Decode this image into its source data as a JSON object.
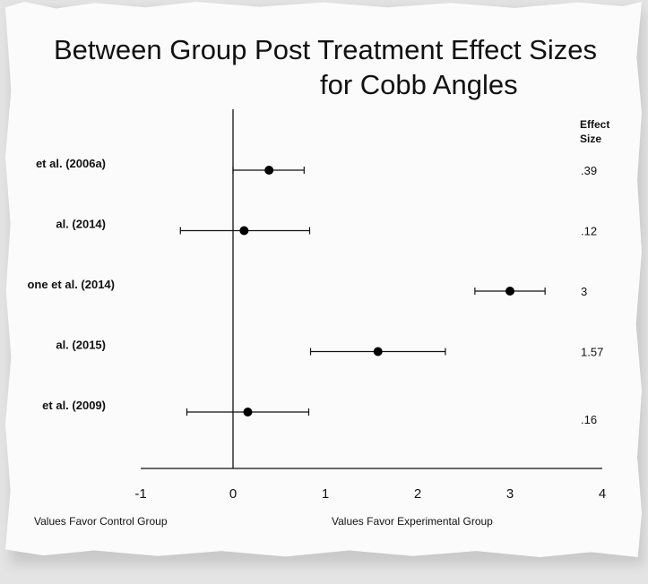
{
  "chart_data": {
    "type": "forest",
    "title_line1": "Between Group Post Treatment Effect Sizes",
    "title_line2": "for Cobb Angles",
    "column_header_line1": "Effect",
    "column_header_line2": "Size",
    "studies": [
      {
        "label": "et al. (2006a)",
        "effect": 0.39,
        "effect_label": ".39",
        "ci": [
          0.0,
          0.77
        ]
      },
      {
        "label": "al. (2014)",
        "effect": 0.12,
        "effect_label": ".12",
        "ci": [
          -0.57,
          0.83
        ]
      },
      {
        "label": "one et al. (2014)",
        "effect": 3.0,
        "effect_label": "3",
        "ci": [
          2.62,
          3.38
        ]
      },
      {
        "label": "al. (2015)",
        "effect": 1.57,
        "effect_label": "1.57",
        "ci": [
          0.84,
          2.3
        ]
      },
      {
        "label": "et al. (2009)",
        "effect": 0.16,
        "effect_label": ".16",
        "ci": [
          -0.5,
          0.82
        ]
      }
    ],
    "xlim": [
      -1,
      4
    ],
    "xticks": [
      "-1",
      "0",
      "1",
      "2",
      "3",
      "4"
    ],
    "xlabel_left": "Values Favor Control Group",
    "xlabel_right": "Values Favor Experimental Group",
    "reference_line": 0
  }
}
